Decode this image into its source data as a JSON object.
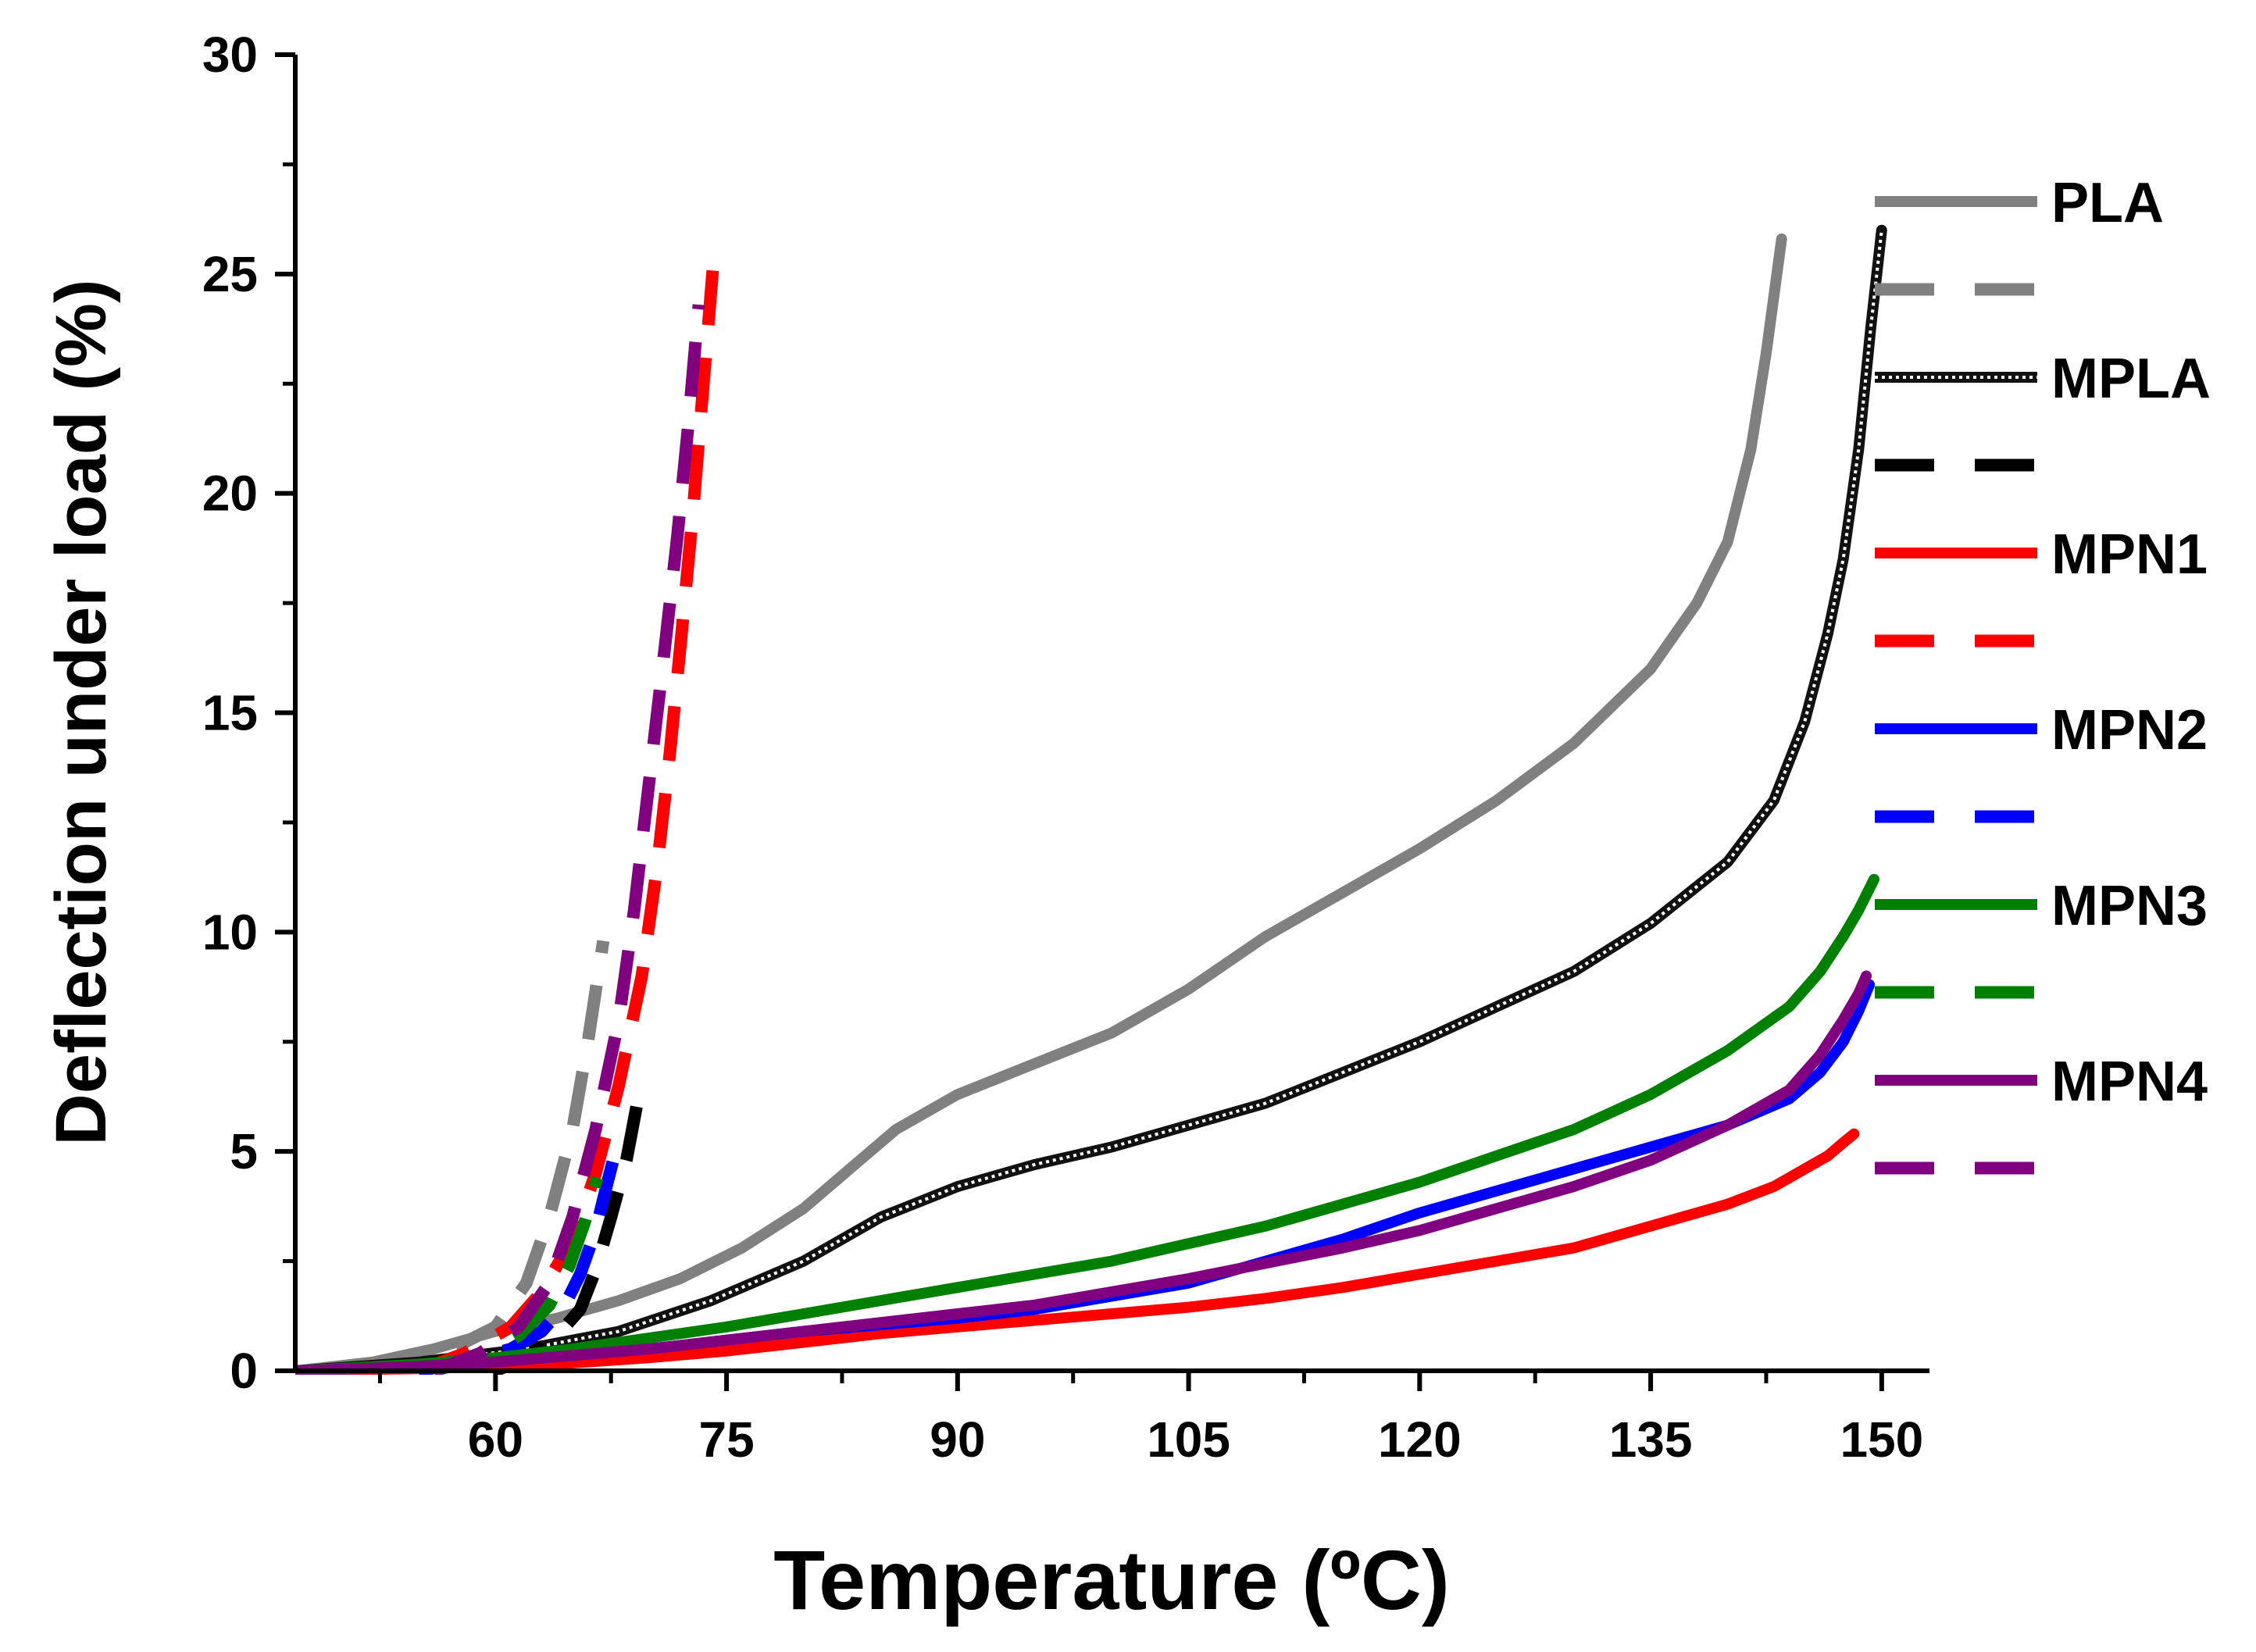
{
  "chart_data": {
    "type": "line",
    "title": "",
    "xlabel": "Temperature (ºC)",
    "ylabel": "Deflection under load (%)",
    "xlim": [
      47,
      153
    ],
    "ylim": [
      0,
      30
    ],
    "xticks": [
      60,
      75,
      90,
      105,
      120,
      135,
      150
    ],
    "yticks": [
      0,
      5,
      10,
      15,
      20,
      25,
      30
    ],
    "grid": false,
    "legend_position": "right",
    "series": [
      {
        "name": "PLA",
        "legend_label": "PLA",
        "color": "#808080",
        "style": "solid",
        "x": [
          47,
          52,
          56,
          60,
          64,
          68,
          72,
          76,
          80,
          83,
          86,
          90,
          95,
          100,
          105,
          110,
          115,
          120,
          125,
          130,
          135,
          138,
          140,
          141.5,
          142.5,
          143.5
        ],
        "y": [
          0,
          0.2,
          0.5,
          0.9,
          1.2,
          1.6,
          2.1,
          2.8,
          3.7,
          4.6,
          5.5,
          6.3,
          7.0,
          7.7,
          8.7,
          9.9,
          10.9,
          11.9,
          13.0,
          14.3,
          16.0,
          17.5,
          18.9,
          21.0,
          23.2,
          25.8
        ]
      },
      {
        "name": "PLA (dashed)",
        "legend_label": "",
        "color": "#808080",
        "style": "dashed",
        "x": [
          52,
          56,
          60,
          62,
          63.5,
          65,
          66,
          67
        ],
        "y": [
          0,
          0.3,
          1.0,
          2.0,
          3.5,
          5.5,
          7.5,
          9.8
        ]
      },
      {
        "name": "MPLA",
        "legend_label": "MPLA",
        "color": "#111111",
        "style": "dotted",
        "x": [
          47,
          55,
          62,
          68,
          74,
          80,
          85,
          90,
          95,
          100,
          105,
          110,
          115,
          120,
          125,
          130,
          135,
          140,
          143,
          145,
          146.5,
          147.5,
          148.5,
          149.3,
          150
        ],
        "y": [
          0,
          0.2,
          0.5,
          0.9,
          1.6,
          2.5,
          3.5,
          4.2,
          4.7,
          5.1,
          5.6,
          6.1,
          6.8,
          7.5,
          8.3,
          9.1,
          10.2,
          11.6,
          13.0,
          14.8,
          16.8,
          18.5,
          21.0,
          23.8,
          26.0
        ]
      },
      {
        "name": "MPLA (dashed)",
        "legend_label": "",
        "color": "#000000",
        "style": "dashed",
        "x": [
          60,
          62,
          64,
          65.5,
          66.5,
          67.5,
          68.5,
          69.2
        ],
        "y": [
          0,
          0.3,
          0.8,
          1.4,
          2.3,
          3.5,
          4.8,
          6.1
        ]
      },
      {
        "name": "MPN1",
        "legend_label": "MPN1",
        "color": "#ff0000",
        "style": "solid",
        "x": [
          47,
          55,
          60,
          65,
          70,
          75,
          80,
          85,
          90,
          95,
          100,
          105,
          110,
          115,
          120,
          125,
          130,
          135,
          140,
          143,
          145,
          146.5,
          147.5,
          148.2
        ],
        "y": [
          0,
          0.05,
          0.1,
          0.18,
          0.3,
          0.45,
          0.65,
          0.85,
          1.0,
          1.15,
          1.3,
          1.45,
          1.65,
          1.9,
          2.2,
          2.5,
          2.8,
          3.3,
          3.8,
          4.2,
          4.6,
          4.9,
          5.2,
          5.4
        ]
      },
      {
        "name": "MPN1 (dashed)",
        "legend_label": "",
        "color": "#ff0000",
        "style": "dashed",
        "x": [
          55,
          58,
          61,
          63,
          65,
          66.5,
          68,
          69.5,
          70.5,
          71.3,
          72,
          72.8,
          73.5,
          74.2
        ],
        "y": [
          0,
          0.4,
          1.0,
          1.8,
          3.0,
          4.5,
          6.5,
          9.0,
          11.5,
          14.0,
          16.5,
          19.5,
          22.5,
          25.5
        ]
      },
      {
        "name": "MPN2",
        "legend_label": "MPN2",
        "color": "#0000ff",
        "style": "solid",
        "x": [
          47,
          55,
          60,
          65,
          70,
          75,
          80,
          85,
          90,
          95,
          100,
          105,
          110,
          115,
          120,
          125,
          130,
          135,
          140,
          144,
          146,
          147.5,
          148.5,
          149.2
        ],
        "y": [
          0,
          0.1,
          0.2,
          0.35,
          0.5,
          0.7,
          0.9,
          1.05,
          1.2,
          1.4,
          1.7,
          2.0,
          2.5,
          3.0,
          3.6,
          4.1,
          4.6,
          5.1,
          5.6,
          6.2,
          6.8,
          7.5,
          8.2,
          8.8
        ]
      },
      {
        "name": "MPN2 (dashed)",
        "legend_label": "",
        "color": "#0000ff",
        "style": "dashed",
        "x": [
          55,
          58,
          61,
          63,
          64.5,
          65.5,
          66.5,
          67.2,
          68
        ],
        "y": [
          0,
          0.2,
          0.5,
          0.9,
          1.5,
          2.2,
          3.2,
          4.2,
          5.3
        ]
      },
      {
        "name": "MPN3",
        "legend_label": "MPN3",
        "color": "#008000",
        "style": "solid",
        "x": [
          47,
          55,
          60,
          65,
          70,
          75,
          80,
          85,
          90,
          95,
          100,
          105,
          110,
          115,
          120,
          125,
          130,
          135,
          140,
          144,
          146,
          147.5,
          148.5,
          149.5
        ],
        "y": [
          0,
          0.15,
          0.3,
          0.5,
          0.75,
          1.0,
          1.3,
          1.6,
          1.9,
          2.2,
          2.5,
          2.9,
          3.3,
          3.8,
          4.3,
          4.9,
          5.5,
          6.3,
          7.3,
          8.3,
          9.1,
          9.9,
          10.5,
          11.2
        ]
      },
      {
        "name": "MPN3 (dashed)",
        "legend_label": "",
        "color": "#008000",
        "style": "dashed",
        "x": [
          56,
          59,
          61.5,
          63.5,
          64.8,
          65.8,
          66.6
        ],
        "y": [
          0,
          0.3,
          0.8,
          1.5,
          2.4,
          3.4,
          4.4
        ]
      },
      {
        "name": "MPN4",
        "legend_label": "MPN4",
        "color": "#800080",
        "style": "solid",
        "x": [
          47,
          55,
          60,
          65,
          70,
          75,
          80,
          85,
          90,
          95,
          100,
          105,
          110,
          115,
          120,
          125,
          130,
          135,
          140,
          144,
          146,
          147.5,
          148.5,
          149
        ],
        "y": [
          0,
          0.1,
          0.2,
          0.35,
          0.5,
          0.7,
          0.9,
          1.1,
          1.3,
          1.5,
          1.8,
          2.1,
          2.45,
          2.8,
          3.2,
          3.7,
          4.2,
          4.8,
          5.6,
          6.4,
          7.2,
          8.0,
          8.6,
          9.0
        ]
      },
      {
        "name": "MPN4 (dashed)",
        "legend_label": "",
        "color": "#800080",
        "style": "dashed",
        "x": [
          56,
          59,
          61.5,
          63.5,
          65,
          66.5,
          68,
          69,
          70,
          71,
          71.8,
          72.5,
          73.2
        ],
        "y": [
          0,
          0.4,
          1.0,
          2.0,
          3.5,
          5.5,
          8.0,
          10.5,
          13.5,
          16.5,
          19.0,
          21.5,
          24.3
        ]
      }
    ]
  }
}
